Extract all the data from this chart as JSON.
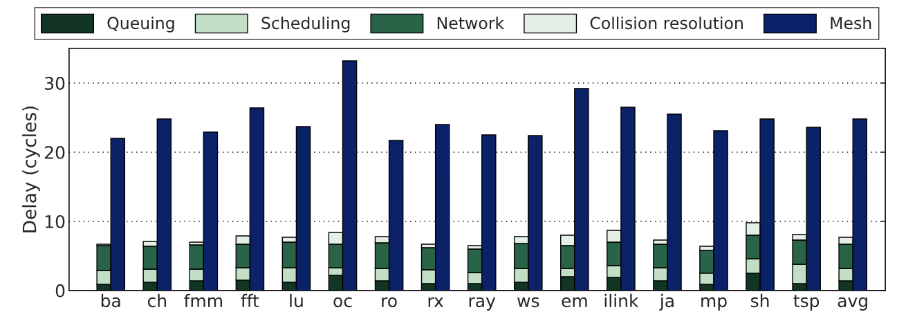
{
  "chart_data": [
    {
      "type": "bar",
      "stacked": true,
      "ylabel": "Delay (cycles)",
      "categories": [
        "ba",
        "ch",
        "fmm",
        "fft",
        "lu",
        "oc",
        "ro",
        "rx",
        "ray",
        "ws",
        "em",
        "ilink",
        "ja",
        "mp",
        "sh",
        "tsp",
        "avg"
      ],
      "series": [
        {
          "name": "Queuing",
          "color": "#123524",
          "values": [
            0.9,
            1.2,
            1.4,
            1.5,
            1.2,
            2.2,
            1.4,
            1.0,
            1.0,
            1.2,
            2.0,
            1.9,
            1.4,
            0.9,
            2.5,
            1.0,
            1.4
          ]
        },
        {
          "name": "Scheduling",
          "color": "#c2dfc6",
          "values": [
            2.0,
            1.9,
            1.7,
            1.8,
            2.1,
            1.1,
            1.8,
            2.0,
            1.6,
            2.0,
            1.2,
            1.7,
            1.9,
            1.6,
            2.1,
            2.8,
            1.8
          ]
        },
        {
          "name": "Network",
          "color": "#2a6448",
          "values": [
            3.6,
            3.3,
            3.5,
            3.4,
            3.7,
            3.4,
            3.7,
            3.2,
            3.4,
            3.6,
            3.3,
            3.4,
            3.4,
            3.3,
            3.4,
            3.5,
            3.5
          ]
        },
        {
          "name": "Collision resolution",
          "color": "#e4efe6",
          "values": [
            0.2,
            0.7,
            0.4,
            1.2,
            0.7,
            1.7,
            0.9,
            0.5,
            0.5,
            1.0,
            1.5,
            1.7,
            0.6,
            0.6,
            1.8,
            0.8,
            1.0
          ]
        }
      ],
      "ylim": [
        0,
        35
      ],
      "yticks": [
        0,
        10,
        20,
        30
      ],
      "grid": "y",
      "legend": "top"
    },
    {
      "type": "bar",
      "categories": [
        null,
        null,
        null,
        null,
        null,
        null,
        null,
        null,
        null,
        null,
        null,
        null,
        null,
        null,
        null,
        null,
        null
      ],
      "series": [
        {
          "name": "Mesh",
          "color": "#0b2168",
          "values": [
            22.0,
            24.8,
            22.9,
            26.4,
            23.7,
            33.2,
            21.7,
            24.0,
            22.5,
            22.4,
            29.2,
            26.5,
            25.5,
            23.1,
            24.8,
            23.6,
            24.8
          ]
        }
      ],
      "ylim": [
        0,
        35
      ],
      "yticks": [
        0,
        10,
        20,
        30
      ],
      "tick_labels": false,
      "legend": "top"
    }
  ]
}
